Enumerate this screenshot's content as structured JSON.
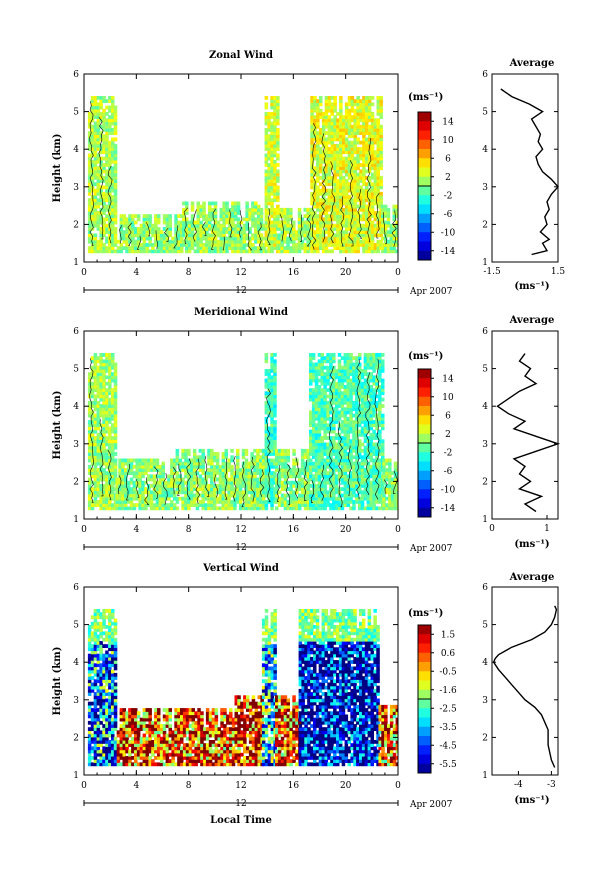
{
  "figure": {
    "date_label": "Apr 2007",
    "xlabel": "Local Time",
    "day_label": "12",
    "unit_label": "(ms⁻¹)"
  },
  "chart_data": [
    {
      "type": "heatmap",
      "title": "Zonal Wind",
      "ylabel": "Height (km)",
      "xlabel": "",
      "xticks": [
        "0",
        "4",
        "8",
        "12",
        "16",
        "20",
        "0"
      ],
      "yticks": [
        "1",
        "2",
        "3",
        "4",
        "5",
        "6"
      ],
      "xlim": [
        0,
        24
      ],
      "ylim": [
        1,
        6
      ],
      "colorbar": {
        "unit": "(ms⁻¹)",
        "ticks": [
          "14",
          "10",
          "6",
          "2",
          "-2",
          "-6",
          "-10",
          "-14"
        ],
        "range": [
          -16,
          16
        ]
      },
      "data_segments": [
        {
          "x0": 0.3,
          "x1": 2.5,
          "ytop": 5.4,
          "vmean": 1.5
        },
        {
          "x0": 2.5,
          "x1": 7.5,
          "ytop": 2.2,
          "vmean": 0.5
        },
        {
          "x0": 7.5,
          "x1": 13.8,
          "ytop": 2.6,
          "vmean": 1.0
        },
        {
          "x0": 13.8,
          "x1": 14.8,
          "ytop": 5.4,
          "vmean": 2.5
        },
        {
          "x0": 14.8,
          "x1": 17.3,
          "ytop": 2.4,
          "vmean": 1.5
        },
        {
          "x0": 17.3,
          "x1": 22.7,
          "ytop": 5.4,
          "vmean": 3.0
        },
        {
          "x0": 22.7,
          "x1": 24.0,
          "ytop": 2.5,
          "vmean": 1.0
        }
      ],
      "average": {
        "title": "Average",
        "xlabel": "(ms⁻¹)",
        "xticks": [
          "-1.5",
          "1.5"
        ],
        "xlim": [
          -1.5,
          1.5
        ],
        "yticks": [
          "1",
          "2",
          "3",
          "4",
          "5",
          "6"
        ],
        "ylim": [
          1,
          6
        ],
        "profile": {
          "height": [
            1.2,
            1.3,
            1.5,
            1.6,
            1.8,
            2.0,
            2.2,
            2.4,
            2.6,
            2.8,
            3.0,
            3.2,
            3.4,
            3.6,
            3.8,
            4.0,
            4.2,
            4.4,
            4.6,
            4.8,
            5.0,
            5.2,
            5.4,
            5.6
          ],
          "value": [
            0.3,
            1.0,
            0.8,
            1.1,
            0.7,
            1.0,
            0.9,
            1.1,
            1.0,
            1.2,
            1.5,
            1.2,
            0.8,
            0.6,
            0.5,
            0.8,
            0.6,
            0.7,
            0.5,
            0.3,
            0.8,
            0.2,
            -0.6,
            -1.1
          ]
        }
      }
    },
    {
      "type": "heatmap",
      "title": "Meridional Wind",
      "ylabel": "Height (km)",
      "xlabel": "",
      "xticks": [
        "0",
        "4",
        "8",
        "12",
        "16",
        "20",
        "0"
      ],
      "yticks": [
        "1",
        "2",
        "3",
        "4",
        "5",
        "6"
      ],
      "xlim": [
        0,
        24
      ],
      "ylim": [
        1,
        6
      ],
      "colorbar": {
        "unit": "(ms⁻¹)",
        "ticks": [
          "14",
          "10",
          "6",
          "2",
          "-2",
          "-6",
          "-10",
          "-14"
        ],
        "range": [
          -16,
          16
        ]
      },
      "data_segments": [
        {
          "x0": 0.3,
          "x1": 2.4,
          "ytop": 5.4,
          "vmean": 1.0
        },
        {
          "x0": 2.4,
          "x1": 7.0,
          "ytop": 2.6,
          "vmean": 0.5
        },
        {
          "x0": 7.0,
          "x1": 13.8,
          "ytop": 2.8,
          "vmean": 0.5
        },
        {
          "x0": 13.8,
          "x1": 14.6,
          "ytop": 5.4,
          "vmean": -2.0
        },
        {
          "x0": 14.6,
          "x1": 17.2,
          "ytop": 2.8,
          "vmean": 0.5
        },
        {
          "x0": 17.2,
          "x1": 22.8,
          "ytop": 5.4,
          "vmean": -1.5
        },
        {
          "x0": 22.8,
          "x1": 24.0,
          "ytop": 2.6,
          "vmean": 0.5
        }
      ],
      "average": {
        "title": "Average",
        "xlabel": "(ms⁻¹)",
        "xticks": [
          "0",
          "1"
        ],
        "xlim": [
          0,
          1.2
        ],
        "yticks": [
          "1",
          "2",
          "3",
          "4",
          "5",
          "6"
        ],
        "ylim": [
          1,
          6
        ],
        "profile": {
          "height": [
            1.2,
            1.4,
            1.6,
            1.8,
            2.0,
            2.2,
            2.4,
            2.6,
            2.8,
            3.0,
            3.2,
            3.4,
            3.6,
            3.8,
            4.0,
            4.2,
            4.4,
            4.6,
            4.8,
            5.0,
            5.2,
            5.4
          ],
          "value": [
            0.8,
            0.6,
            0.9,
            0.5,
            0.7,
            0.5,
            0.6,
            0.4,
            0.8,
            1.2,
            0.8,
            0.4,
            0.6,
            0.3,
            0.1,
            0.3,
            0.5,
            0.8,
            0.6,
            0.7,
            0.5,
            0.6
          ]
        }
      }
    },
    {
      "type": "heatmap",
      "title": "Vertical Wind",
      "ylabel": "Height (km)",
      "xlabel": "Local Time",
      "xticks": [
        "0",
        "4",
        "8",
        "12",
        "16",
        "20",
        "0"
      ],
      "yticks": [
        "1",
        "2",
        "3",
        "4",
        "5",
        "6"
      ],
      "xlim": [
        0,
        24
      ],
      "ylim": [
        1,
        6
      ],
      "colorbar": {
        "unit": "(ms⁻¹)",
        "ticks": [
          "1.5",
          "0.6",
          "-0.5",
          "-1.6",
          "-2.5",
          "-3.5",
          "-4.5",
          "-5.5"
        ],
        "range": [
          -6.0,
          2.0
        ]
      },
      "data_segments": [
        {
          "x0": 0.3,
          "x1": 2.5,
          "ytop": 5.4,
          "vmean": -4.0
        },
        {
          "x0": 2.5,
          "x1": 11.5,
          "ytop": 2.7,
          "vmean": 0.6
        },
        {
          "x0": 11.5,
          "x1": 13.6,
          "ytop": 3.1,
          "vmean": 0.9
        },
        {
          "x0": 13.6,
          "x1": 14.6,
          "ytop": 5.4,
          "vmean": -3.5
        },
        {
          "x0": 14.6,
          "x1": 16.4,
          "ytop": 3.1,
          "vmean": 0.5
        },
        {
          "x0": 16.4,
          "x1": 22.5,
          "ytop": 5.4,
          "vmean": -5.6
        },
        {
          "x0": 22.5,
          "x1": 24.0,
          "ytop": 2.8,
          "vmean": 0.3
        }
      ],
      "average": {
        "title": "Average",
        "xlabel": "(ms⁻¹)",
        "xticks": [
          "-4",
          "-3"
        ],
        "xlim": [
          -4.8,
          -2.8
        ],
        "yticks": [
          "1",
          "2",
          "3",
          "4",
          "5",
          "6"
        ],
        "ylim": [
          1,
          6
        ],
        "profile": {
          "height": [
            1.2,
            1.4,
            1.8,
            2.2,
            2.6,
            2.8,
            3.0,
            3.2,
            3.4,
            3.6,
            3.8,
            4.0,
            4.1,
            4.2,
            4.4,
            4.6,
            4.8,
            5.0,
            5.2,
            5.4,
            5.5
          ],
          "value": [
            -2.9,
            -3.0,
            -3.1,
            -3.1,
            -3.3,
            -3.5,
            -3.8,
            -4.0,
            -4.2,
            -4.4,
            -4.6,
            -4.75,
            -4.7,
            -4.6,
            -4.2,
            -3.6,
            -3.2,
            -3.0,
            -2.9,
            -2.85,
            -2.9
          ]
        }
      }
    }
  ]
}
